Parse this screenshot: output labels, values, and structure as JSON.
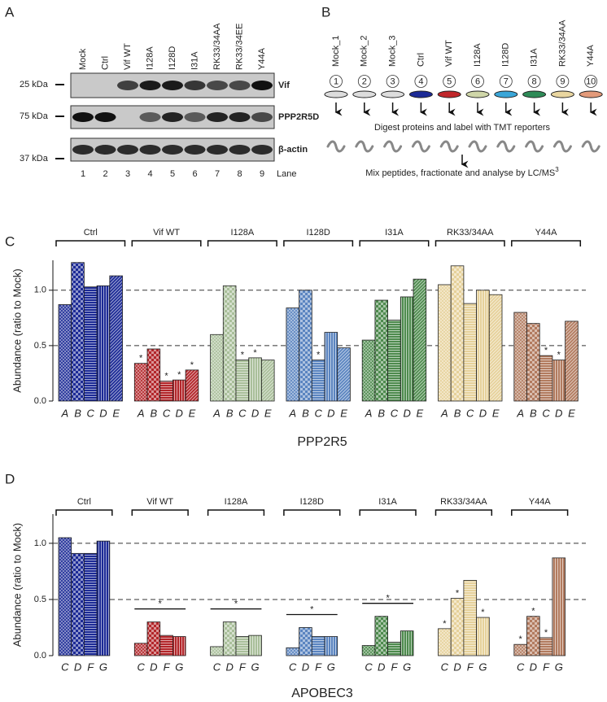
{
  "panel_a": {
    "label": "A",
    "lanes": [
      "Mock",
      "Ctrl",
      "Vif WT",
      "I128A",
      "I128D",
      "I31A",
      "RK33/34AA",
      "RK33/34EE",
      "Y44A"
    ],
    "blots": [
      {
        "protein": "Vif",
        "kda": "25 kDa"
      },
      {
        "protein": "PPP2R5D",
        "kda": "75 kDa"
      },
      {
        "protein": "β-actin",
        "kda": "37 kDa"
      }
    ],
    "lane_numbers": [
      1,
      2,
      3,
      4,
      5,
      6,
      7,
      8,
      9
    ],
    "lane_title": "Lane"
  },
  "panel_b": {
    "label": "B",
    "conditions": [
      "Mock_1",
      "Mock_2",
      "Mock_3",
      "Ctrl",
      "Vif WT",
      "I128A",
      "I128D",
      "I31A",
      "RK33/34AA",
      "Y44A"
    ],
    "numbers": [
      1,
      2,
      3,
      4,
      5,
      6,
      7,
      8,
      9,
      10
    ],
    "step_1": "Digest proteins and label with TMT reporters",
    "step_2": {
      "text": "Mix peptides, fractionate and analyse by LC/MS",
      "superscript": "3"
    }
  },
  "chart_data": [
    {
      "type": "bar",
      "label": "C",
      "ylabel": "Abundance (ratio to Mock)",
      "xlabel": "PPP2R5",
      "ylim": [
        0,
        1.27
      ],
      "yticks": [
        {
          "value": 0,
          "label": "0.0"
        },
        0.5,
        {
          "value": 1,
          "label": "1.0"
        }
      ],
      "dashed_lines": [
        0.5,
        1
      ],
      "categories": [
        "A",
        "B",
        "C",
        "D",
        "E"
      ],
      "patterns": [
        "crosshatch",
        "checker",
        "horizontal",
        "vertical",
        "diagonal"
      ],
      "series": [
        {
          "name": "Ctrl",
          "color": "#1c2a96",
          "values": [
            0.87,
            1.25,
            1.03,
            1.04,
            1.13
          ],
          "significance": [
            null,
            null,
            null,
            null,
            null
          ]
        },
        {
          "name": "Vif WT",
          "color": "#b3262a",
          "values": [
            0.34,
            0.47,
            0.18,
            0.19,
            0.28
          ],
          "significance": [
            "*",
            null,
            "*",
            "*",
            "*"
          ]
        },
        {
          "name": "I128A",
          "color": "#a9bf9a",
          "values": [
            0.6,
            1.04,
            0.37,
            0.39,
            0.37
          ],
          "significance": [
            null,
            null,
            "*",
            "*",
            null
          ]
        },
        {
          "name": "I128D",
          "color": "#5a84c0",
          "values": [
            0.84,
            1.0,
            0.37,
            0.62,
            0.48
          ],
          "significance": [
            null,
            null,
            "*",
            null,
            null
          ]
        },
        {
          "name": "I31A",
          "color": "#4e8b4e",
          "values": [
            0.55,
            0.91,
            0.73,
            0.94,
            1.1
          ],
          "significance": [
            null,
            null,
            null,
            null,
            null
          ]
        },
        {
          "name": "RK33/34AA",
          "color": "#e6d19a",
          "values": [
            1.05,
            1.22,
            0.88,
            1.0,
            0.96
          ],
          "significance": [
            null,
            null,
            null,
            null,
            null
          ]
        },
        {
          "name": "Y44A",
          "color": "#b27b5f",
          "values": [
            0.8,
            0.7,
            0.41,
            0.37,
            0.72
          ],
          "significance": [
            null,
            null,
            "*",
            "*",
            null
          ]
        }
      ]
    },
    {
      "type": "bar",
      "label": "D",
      "ylabel": "Abundance (ratio to Mock)",
      "xlabel": "APOBEC3",
      "ylim": [
        0,
        1.26
      ],
      "yticks": [
        {
          "value": 0,
          "label": "0.0"
        },
        0.5,
        {
          "value": 1,
          "label": "1.0"
        }
      ],
      "dashed_lines": [
        0.5,
        1
      ],
      "categories": [
        "C",
        "D",
        "F",
        "G"
      ],
      "patterns": [
        "crosshatch",
        "checker",
        "horizontal",
        "vertical"
      ],
      "series": [
        {
          "name": "Ctrl",
          "color": "#1c2a96",
          "values": [
            1.05,
            0.91,
            0.91,
            1.02
          ],
          "significance": [
            null,
            null,
            null,
            null
          ]
        },
        {
          "name": "Vif WT",
          "color": "#b3262a",
          "values": [
            0.11,
            0.3,
            0.18,
            0.17
          ],
          "significance": [
            null,
            null,
            null,
            null
          ],
          "group_significance": "*"
        },
        {
          "name": "I128A",
          "color": "#a9bf9a",
          "values": [
            0.08,
            0.3,
            0.17,
            0.18
          ],
          "significance": [
            null,
            null,
            null,
            null
          ],
          "group_significance": "*"
        },
        {
          "name": "I128D",
          "color": "#5a84c0",
          "values": [
            0.07,
            0.25,
            0.17,
            0.17
          ],
          "significance": [
            null,
            null,
            null,
            null
          ],
          "group_significance": "*"
        },
        {
          "name": "I31A",
          "color": "#4e8b4e",
          "values": [
            0.09,
            0.35,
            0.12,
            0.22
          ],
          "significance": [
            null,
            null,
            null,
            null
          ],
          "group_significance": "*"
        },
        {
          "name": "RK33/34AA",
          "color": "#e6d19a",
          "values": [
            0.24,
            0.51,
            0.67,
            0.34
          ],
          "significance": [
            "*",
            "*",
            null,
            "*"
          ]
        },
        {
          "name": "Y44A",
          "color": "#b27b5f",
          "values": [
            0.1,
            0.35,
            0.16,
            0.87
          ],
          "significance": [
            "*",
            "*",
            "*",
            null
          ]
        }
      ]
    }
  ]
}
